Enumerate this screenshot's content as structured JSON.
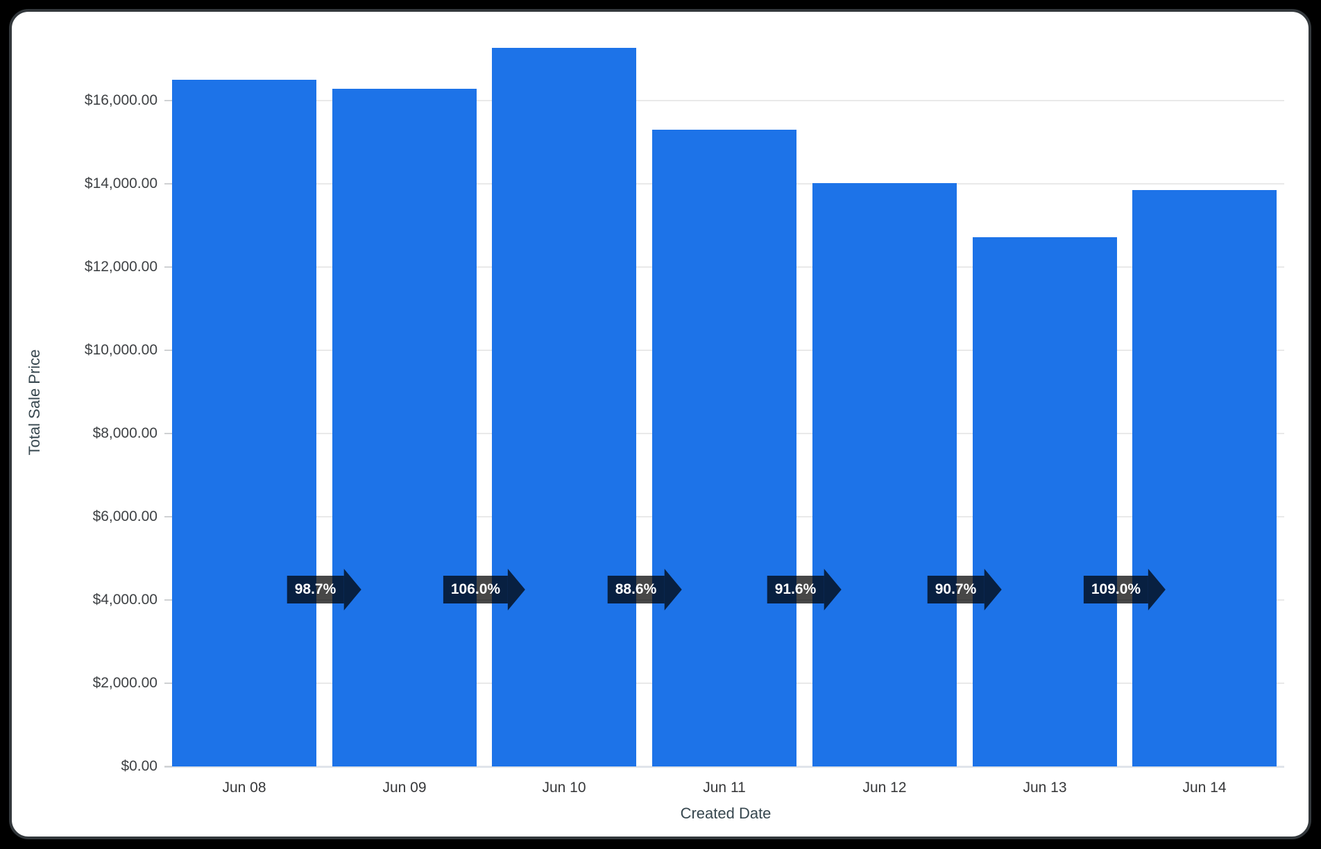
{
  "page": {
    "background_color": "#000000",
    "card_background": "#ffffff",
    "card_border_color": "#33383c"
  },
  "chart_data": {
    "type": "bar",
    "title": "",
    "xlabel": "Created Date",
    "ylabel": "Total Sale Price",
    "categories": [
      "Jun 08",
      "Jun 09",
      "Jun 10",
      "Jun 11",
      "Jun 12",
      "Jun 13",
      "Jun 14"
    ],
    "values": [
      16500,
      16290,
      17270,
      15300,
      14010,
      12710,
      13850
    ],
    "ratio_labels": [
      "98.7%",
      "106.0%",
      "88.6%",
      "91.6%",
      "90.7%",
      "109.0%"
    ],
    "y_tick_values": [
      0,
      2000,
      4000,
      6000,
      8000,
      10000,
      12000,
      14000,
      16000
    ],
    "y_tick_labels": [
      "$0.00",
      "$2,000.00",
      "$4,000.00",
      "$6,000.00",
      "$8,000.00",
      "$10,000.00",
      "$12,000.00",
      "$14,000.00",
      "$16,000.00"
    ],
    "ylim": [
      0,
      17480
    ],
    "grid": "horizontal",
    "legend": "none",
    "bar_color": "#1d73e8",
    "grid_color": "#e9e9e9",
    "axis_text_color": "#3f4245",
    "axis_title_color": "#37474f",
    "arrow_fill": "rgba(0,0,0,0.72)",
    "arrow_text_color": "#ffffff"
  }
}
